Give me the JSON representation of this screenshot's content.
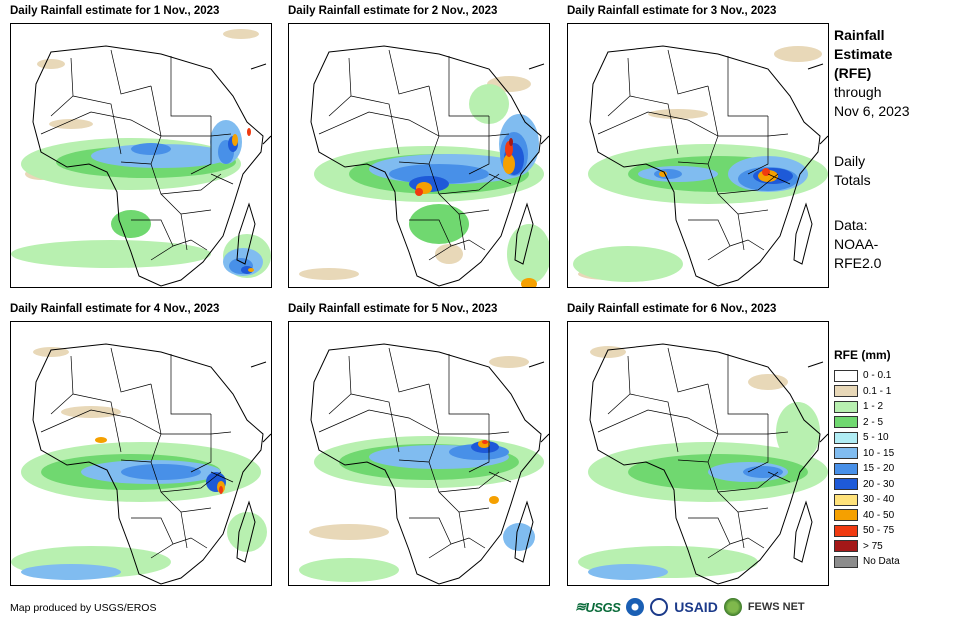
{
  "panels": [
    {
      "title": "Daily Rainfall estimate for 1 Nov., 2023"
    },
    {
      "title": "Daily Rainfall estimate for 2 Nov., 2023"
    },
    {
      "title": "Daily Rainfall estimate for 3 Nov., 2023"
    },
    {
      "title": "Daily Rainfall estimate for 4 Nov., 2023"
    },
    {
      "title": "Daily Rainfall estimate for 5 Nov., 2023"
    },
    {
      "title": "Daily Rainfall estimate for 6 Nov., 2023"
    }
  ],
  "sidebar": {
    "heading_lines": [
      "Rainfall",
      "Estimate",
      "(RFE)"
    ],
    "through_lines": [
      "through",
      "Nov 6, 2023"
    ],
    "totals_lines": [
      "Daily",
      "Totals"
    ],
    "data_lines": [
      "Data:",
      "NOAA-",
      "RFE2.0"
    ]
  },
  "legend": {
    "title": "RFE (mm)",
    "items": [
      {
        "label": "0 - 0.1",
        "color": "#ffffff"
      },
      {
        "label": "0.1 - 1",
        "color": "#e8d8b8"
      },
      {
        "label": "1 - 2",
        "color": "#b8f0b0"
      },
      {
        "label": "2 - 5",
        "color": "#70d870"
      },
      {
        "label": "5 - 10",
        "color": "#b0ecf4"
      },
      {
        "label": "10 - 15",
        "color": "#80bcf0"
      },
      {
        "label": "15 - 20",
        "color": "#4890e8"
      },
      {
        "label": "20 - 30",
        "color": "#1e5ad8"
      },
      {
        "label": "30 - 40",
        "color": "#ffe27a"
      },
      {
        "label": "40 - 50",
        "color": "#f5a000"
      },
      {
        "label": "50 - 75",
        "color": "#f03a10"
      },
      {
        "label": "> 75",
        "color": "#a41818"
      },
      {
        "label": "No Data",
        "color": "#8c8c8c"
      }
    ]
  },
  "footer": {
    "credit": "Map produced by USGS/EROS",
    "logos": {
      "usgs": "USGS",
      "usaid": "USAID",
      "fews": "FEWS NET"
    }
  }
}
